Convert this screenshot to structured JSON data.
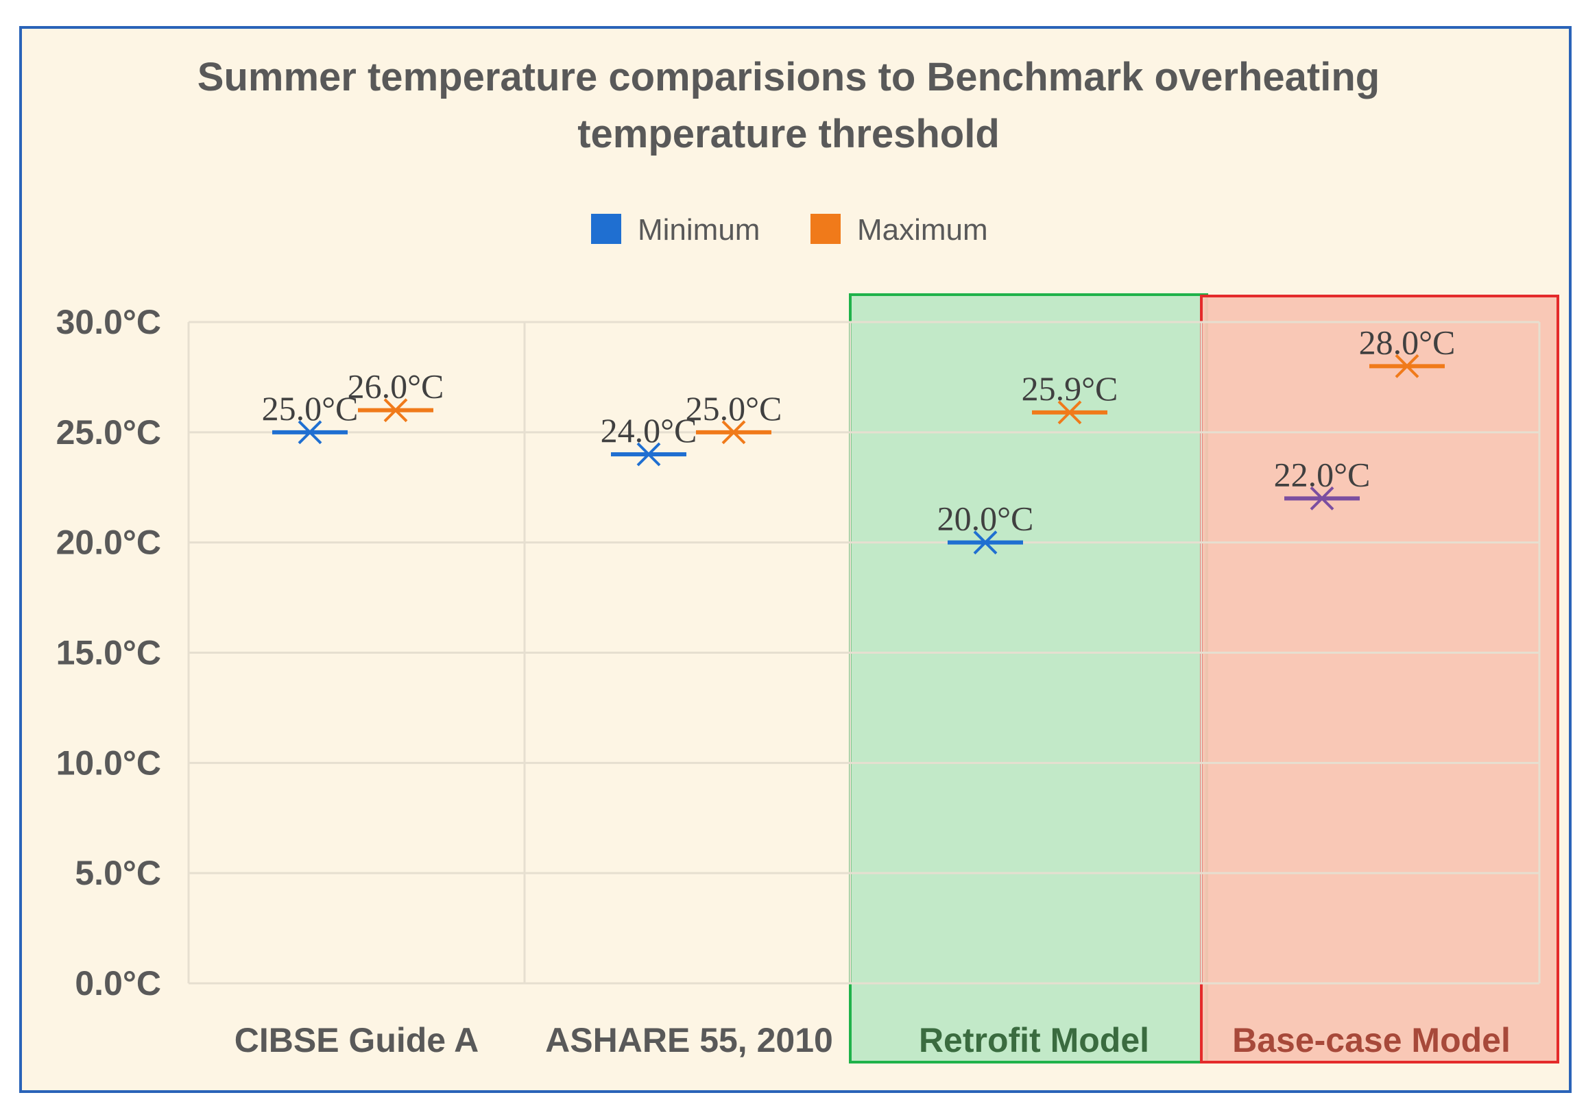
{
  "chart_data": {
    "type": "scatter",
    "title_line1": "Summer temperature comparisions to Benchmark  overheating",
    "title_line2": "temperature threshold",
    "categories": [
      "CIBSE Guide A",
      "ASHARE 55, 2010",
      "Retrofit Model",
      "Base-case Model"
    ],
    "series": [
      {
        "name": "Minimum",
        "values": [
          25.0,
          24.0,
          20.0,
          22.0
        ],
        "labels": [
          "25.0°C",
          "24.0°C",
          "20.0°C",
          "22.0°C"
        ],
        "color": "#1f6fd1"
      },
      {
        "name": "Maximum",
        "values": [
          26.0,
          25.0,
          25.9,
          28.0
        ],
        "labels": [
          "26.0°C",
          "25.0°C",
          "25.9°C",
          "28.0°C"
        ],
        "color": "#f07a1a"
      }
    ],
    "yticks": [
      {
        "value": 0,
        "label": "0.0°C"
      },
      {
        "value": 5,
        "label": "5.0°C"
      },
      {
        "value": 10,
        "label": "10.0°C"
      },
      {
        "value": 15,
        "label": "15.0°C"
      },
      {
        "value": 20,
        "label": "20.0°C"
      },
      {
        "value": 25,
        "label": "25.0°C"
      },
      {
        "value": 30,
        "label": "30.0°C"
      }
    ],
    "ylim": [
      0,
      30
    ],
    "legend_position": "top-center",
    "grid": true,
    "highlights": [
      {
        "category": "Retrofit Model",
        "fill": "#bfe8c6",
        "stroke": "#1fb24a"
      },
      {
        "category": "Base-case Model",
        "fill": "#f9c5b3",
        "stroke": "#e42b2b"
      }
    ],
    "colors": {
      "background": "#fdf5e4",
      "frame": "#2a63b8",
      "grid": "#e6dfd0",
      "text": "#595959",
      "minimum_point_basecase": "#7b4ea0"
    }
  }
}
